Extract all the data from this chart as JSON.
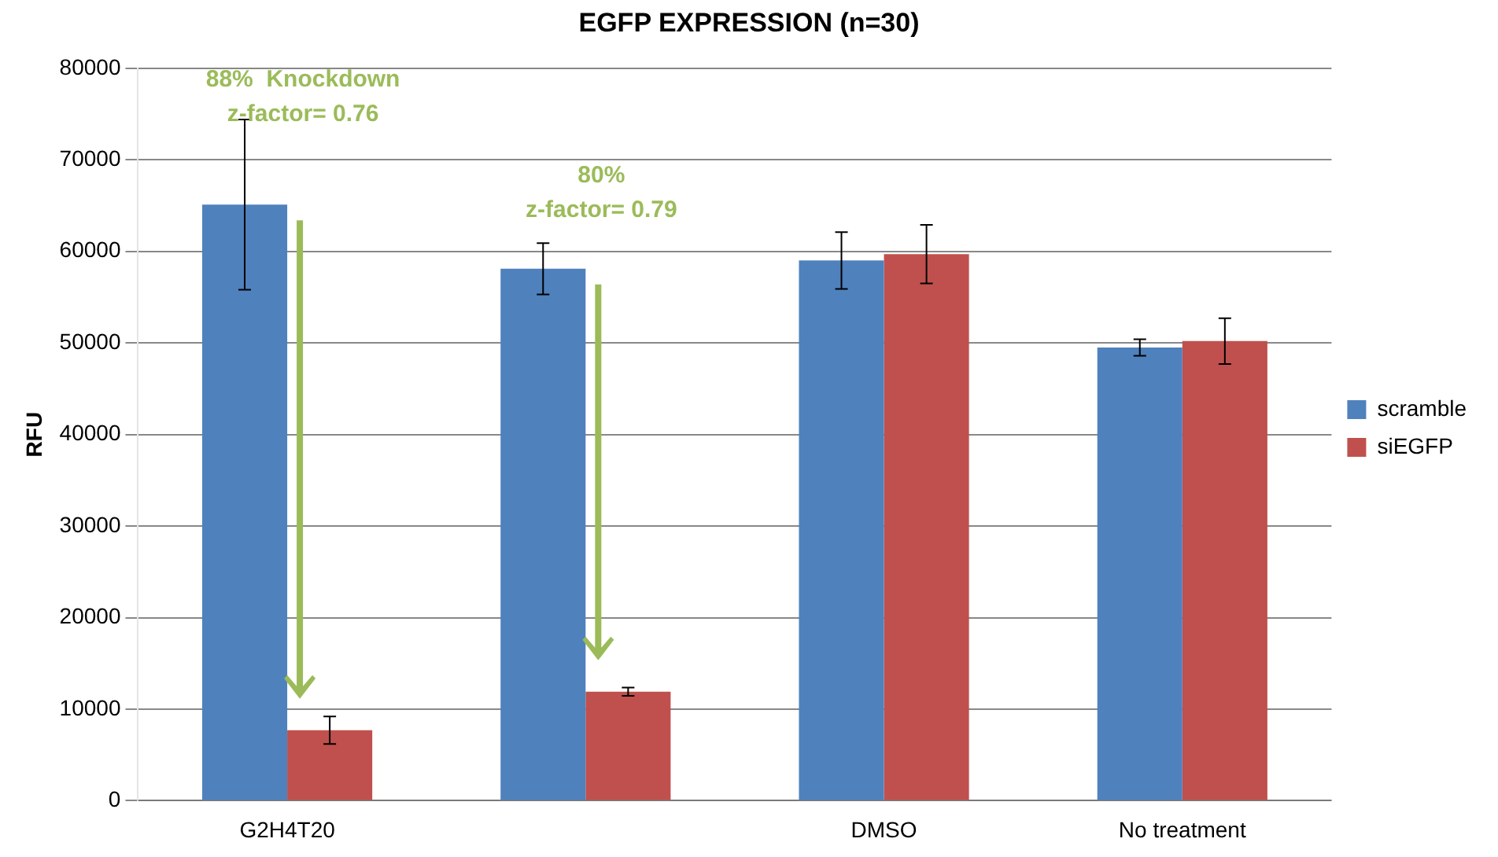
{
  "chart_data": {
    "type": "bar",
    "title": "EGFP EXPRESSION (n=30)",
    "ylabel": "RFU",
    "categories": [
      "G2H4T20",
      null,
      "DMSO",
      "No treatment"
    ],
    "series": [
      {
        "name": "scramble",
        "color": "#4f81bd",
        "values": [
          65100,
          58100,
          59000,
          49500
        ],
        "errors": [
          9300,
          2800,
          3100,
          900
        ]
      },
      {
        "name": "siEGFP",
        "color": "#c0504d",
        "values": [
          7700,
          11900,
          59700,
          50200
        ],
        "errors": [
          1500,
          450,
          3200,
          2500
        ]
      }
    ],
    "annotations": [
      "88%  Knockdown\nz-factor= 0.76",
      "80%\nz-factor= 0.79"
    ],
    "ylim": [
      0,
      80000
    ],
    "yticks": [
      0,
      10000,
      20000,
      30000,
      40000,
      50000,
      60000,
      70000,
      80000
    ],
    "grid": "y",
    "legend": "right"
  }
}
